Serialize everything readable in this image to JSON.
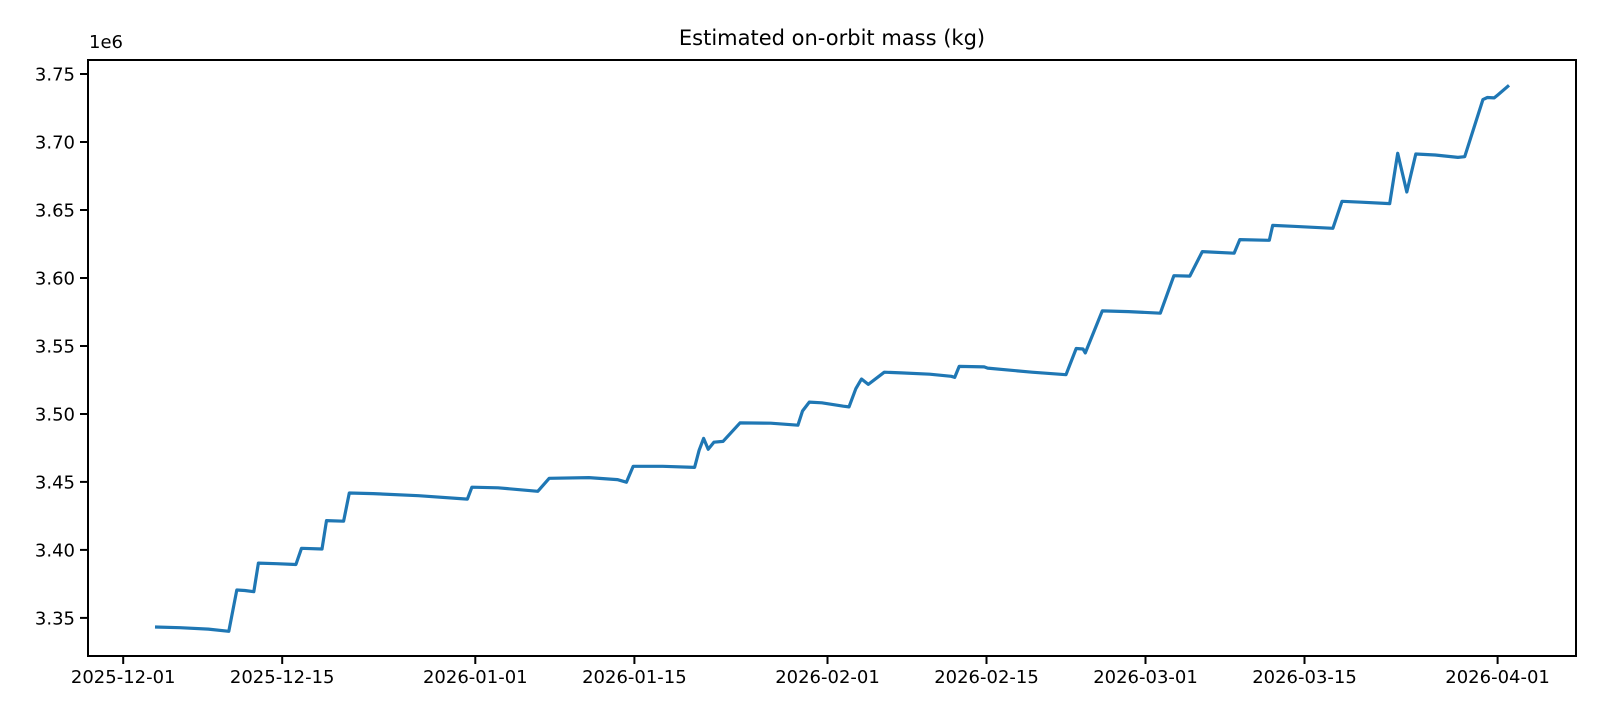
{
  "figure": {
    "background": "#ffffff",
    "text_color": "#000000",
    "spine_color": "#000000"
  },
  "chart_data": {
    "type": "line",
    "title": "Estimated on-orbit mass (kg)",
    "y_offset_label": "1e6",
    "xlabel": "",
    "ylabel": "",
    "grid": false,
    "legend": null,
    "x_epoch": "2025-12-01",
    "x_unit": "days since 2025-12-01",
    "xlim_days": [
      -3.1,
      127.9
    ],
    "ylim_kg": [
      3322000,
      3760300
    ],
    "x_ticks": [
      {
        "d": 0,
        "label": "2025-12-01"
      },
      {
        "d": 14,
        "label": "2025-12-15"
      },
      {
        "d": 31,
        "label": "2026-01-01"
      },
      {
        "d": 45,
        "label": "2026-01-15"
      },
      {
        "d": 62,
        "label": "2026-02-01"
      },
      {
        "d": 76,
        "label": "2026-02-15"
      },
      {
        "d": 90,
        "label": "2026-03-01"
      },
      {
        "d": 104,
        "label": "2026-03-15"
      },
      {
        "d": 121,
        "label": "2026-04-01"
      }
    ],
    "y_ticks": [
      {
        "value": 3350000,
        "label": "3.35"
      },
      {
        "value": 3400000,
        "label": "3.40"
      },
      {
        "value": 3450000,
        "label": "3.45"
      },
      {
        "value": 3500000,
        "label": "3.50"
      },
      {
        "value": 3550000,
        "label": "3.55"
      },
      {
        "value": 3600000,
        "label": "3.60"
      },
      {
        "value": 3650000,
        "label": "3.65"
      },
      {
        "value": 3700000,
        "label": "3.70"
      },
      {
        "value": 3750000,
        "label": "3.75"
      }
    ],
    "series": [
      {
        "name": "estimated-on-orbit-mass",
        "color": "#1f77b4",
        "line_width": 3.2,
        "points_days_kg": [
          [
            2.8,
            3343300
          ],
          [
            5.0,
            3342800
          ],
          [
            7.5,
            3341800
          ],
          [
            9.3,
            3340200
          ],
          [
            10.0,
            3370500
          ],
          [
            10.7,
            3370200
          ],
          [
            11.5,
            3369300
          ],
          [
            11.9,
            3390300
          ],
          [
            13.5,
            3389900
          ],
          [
            15.2,
            3389300
          ],
          [
            15.7,
            3401200
          ],
          [
            17.5,
            3400700
          ],
          [
            17.9,
            3421600
          ],
          [
            19.4,
            3421100
          ],
          [
            19.9,
            3441900
          ],
          [
            22.0,
            3441400
          ],
          [
            26.0,
            3439900
          ],
          [
            30.3,
            3437400
          ],
          [
            30.7,
            3446100
          ],
          [
            33.0,
            3445700
          ],
          [
            36.5,
            3443100
          ],
          [
            37.5,
            3452700
          ],
          [
            41.0,
            3453200
          ],
          [
            43.5,
            3451700
          ],
          [
            44.3,
            3449800
          ],
          [
            44.9,
            3461500
          ],
          [
            47.5,
            3461500
          ],
          [
            50.3,
            3460700
          ],
          [
            50.7,
            3473300
          ],
          [
            51.1,
            3482000
          ],
          [
            51.5,
            3474000
          ],
          [
            52.0,
            3479200
          ],
          [
            52.8,
            3479800
          ],
          [
            54.3,
            3493400
          ],
          [
            57.0,
            3493200
          ],
          [
            59.4,
            3491700
          ],
          [
            59.8,
            3502200
          ],
          [
            60.4,
            3508700
          ],
          [
            61.5,
            3508200
          ],
          [
            63.4,
            3505700
          ],
          [
            63.9,
            3505200
          ],
          [
            64.5,
            3518700
          ],
          [
            65.0,
            3525700
          ],
          [
            65.6,
            3521700
          ],
          [
            67.0,
            3530700
          ],
          [
            68.5,
            3530200
          ],
          [
            71.0,
            3529200
          ],
          [
            72.9,
            3527700
          ],
          [
            73.2,
            3526900
          ],
          [
            73.6,
            3535000
          ],
          [
            75.8,
            3534600
          ],
          [
            76.1,
            3533700
          ],
          [
            80.0,
            3530700
          ],
          [
            83.0,
            3528900
          ],
          [
            83.9,
            3548100
          ],
          [
            84.5,
            3547800
          ],
          [
            84.7,
            3544900
          ],
          [
            86.2,
            3575800
          ],
          [
            88.5,
            3575300
          ],
          [
            91.3,
            3574100
          ],
          [
            92.5,
            3601700
          ],
          [
            93.9,
            3601400
          ],
          [
            95.0,
            3619400
          ],
          [
            97.8,
            3618200
          ],
          [
            98.3,
            3628200
          ],
          [
            100.9,
            3627700
          ],
          [
            101.2,
            3638700
          ],
          [
            103.0,
            3638000
          ],
          [
            106.5,
            3636500
          ],
          [
            107.3,
            3656400
          ],
          [
            109.0,
            3655700
          ],
          [
            111.5,
            3654700
          ],
          [
            112.2,
            3691700
          ],
          [
            113.0,
            3663200
          ],
          [
            113.8,
            3691200
          ],
          [
            115.5,
            3690400
          ],
          [
            117.5,
            3688700
          ],
          [
            118.1,
            3689200
          ],
          [
            119.7,
            3731200
          ],
          [
            120.1,
            3732700
          ],
          [
            120.7,
            3732400
          ],
          [
            121.0,
            3734500
          ],
          [
            122.0,
            3741700
          ]
        ]
      }
    ]
  }
}
